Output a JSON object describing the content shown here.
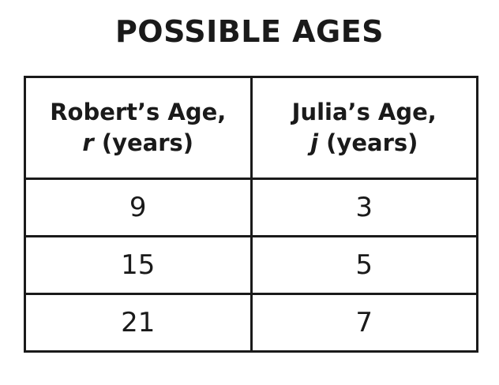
{
  "title": "POSSIBLE AGES",
  "table": {
    "headers": [
      {
        "line1": "Robert’s Age,",
        "var": "r",
        "unit": "(years)"
      },
      {
        "line1": "Julia’s Age,",
        "var": "j",
        "unit": "(years)"
      }
    ],
    "rows": [
      [
        "9",
        "3"
      ],
      [
        "15",
        "5"
      ],
      [
        "21",
        "7"
      ]
    ]
  }
}
